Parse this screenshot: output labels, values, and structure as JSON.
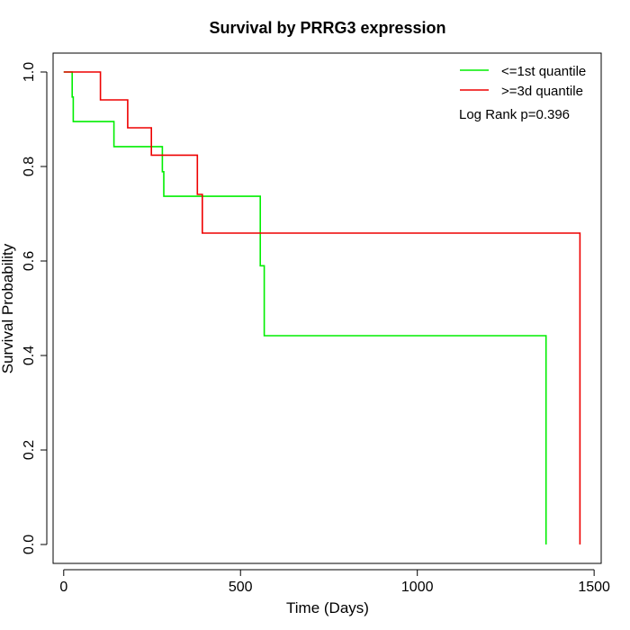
{
  "chart_data": {
    "type": "line",
    "title": "Survival by PRRG3 expression",
    "xlabel": "Time (Days)",
    "ylabel": "Survival Probability",
    "xlim": [
      -30,
      1520
    ],
    "ylim": [
      -0.04,
      1.04
    ],
    "x_ticks": [
      0,
      500,
      1000,
      1500
    ],
    "y_ticks": [
      0.0,
      0.2,
      0.4,
      0.6,
      0.8,
      1.0
    ],
    "x_tick_labels": [
      "0",
      "500",
      "1000",
      "1500"
    ],
    "y_tick_labels": [
      "0.0",
      "0.2",
      "0.4",
      "0.6",
      "0.8",
      "1.0"
    ],
    "legend_position": "top-right",
    "annotation": "Log Rank p=0.396",
    "series": [
      {
        "name": "<=1st quantile",
        "color": "#00ee00",
        "steps": [
          [
            0,
            1.0
          ],
          [
            24,
            0.947
          ],
          [
            27,
            0.895
          ],
          [
            142,
            0.842
          ],
          [
            279,
            0.789
          ],
          [
            283,
            0.737
          ],
          [
            556,
            0.59
          ],
          [
            567,
            0.442
          ],
          [
            1364,
            0.0
          ]
        ]
      },
      {
        "name": ">=3d quantile",
        "color": "#ee0000",
        "steps": [
          [
            0,
            1.0
          ],
          [
            104,
            0.941
          ],
          [
            181,
            0.882
          ],
          [
            248,
            0.824
          ],
          [
            378,
            0.741
          ],
          [
            392,
            0.659
          ],
          [
            1460,
            0.0
          ]
        ]
      }
    ]
  }
}
